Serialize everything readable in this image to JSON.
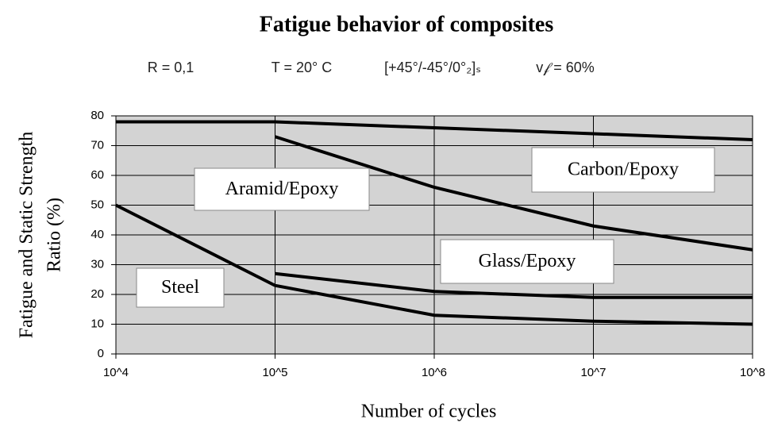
{
  "chart_data": {
    "type": "line",
    "title": "Fatigue behavior of composites",
    "subtitle": [
      "R = 0,1",
      "T = 20° C",
      "[+45°/-45°/0°₂]ₛ",
      "v𝒻 = 60%"
    ],
    "y_label": [
      "Fatigue and Static Strength",
      "Ratio (%)"
    ],
    "x_label": "Number of cycles",
    "x": [
      10000,
      100000,
      1000000,
      10000000,
      100000000
    ],
    "series": [
      {
        "name": "Carbon/Epoxy",
        "color": "#000000",
        "values": [
          78,
          78,
          76,
          74,
          72
        ]
      },
      {
        "name": "Aramid/Epoxy",
        "color": "#000000",
        "values": [
          null,
          73,
          56,
          43,
          35
        ]
      },
      {
        "name": "Glass/Epoxy",
        "color": "#000000",
        "values": [
          null,
          27,
          21,
          19,
          19
        ]
      },
      {
        "name": "Steel",
        "color": "#000000",
        "values": [
          50,
          23,
          13,
          11,
          10
        ]
      }
    ],
    "xlog": true,
    "xlim": [
      10000,
      100000000
    ],
    "xticks": [
      {
        "value": 10000,
        "label": "10^4"
      },
      {
        "value": 100000,
        "label": "10^5"
      },
      {
        "value": 1000000,
        "label": "10^6"
      },
      {
        "value": 10000000,
        "label": "10^7"
      },
      {
        "value": 100000000,
        "label": "10^8"
      }
    ],
    "ylim": [
      0,
      80
    ],
    "yticks": [
      0,
      10,
      20,
      30,
      40,
      50,
      60,
      70,
      80
    ],
    "grid": true,
    "plot_background": "#d3d3d3"
  }
}
